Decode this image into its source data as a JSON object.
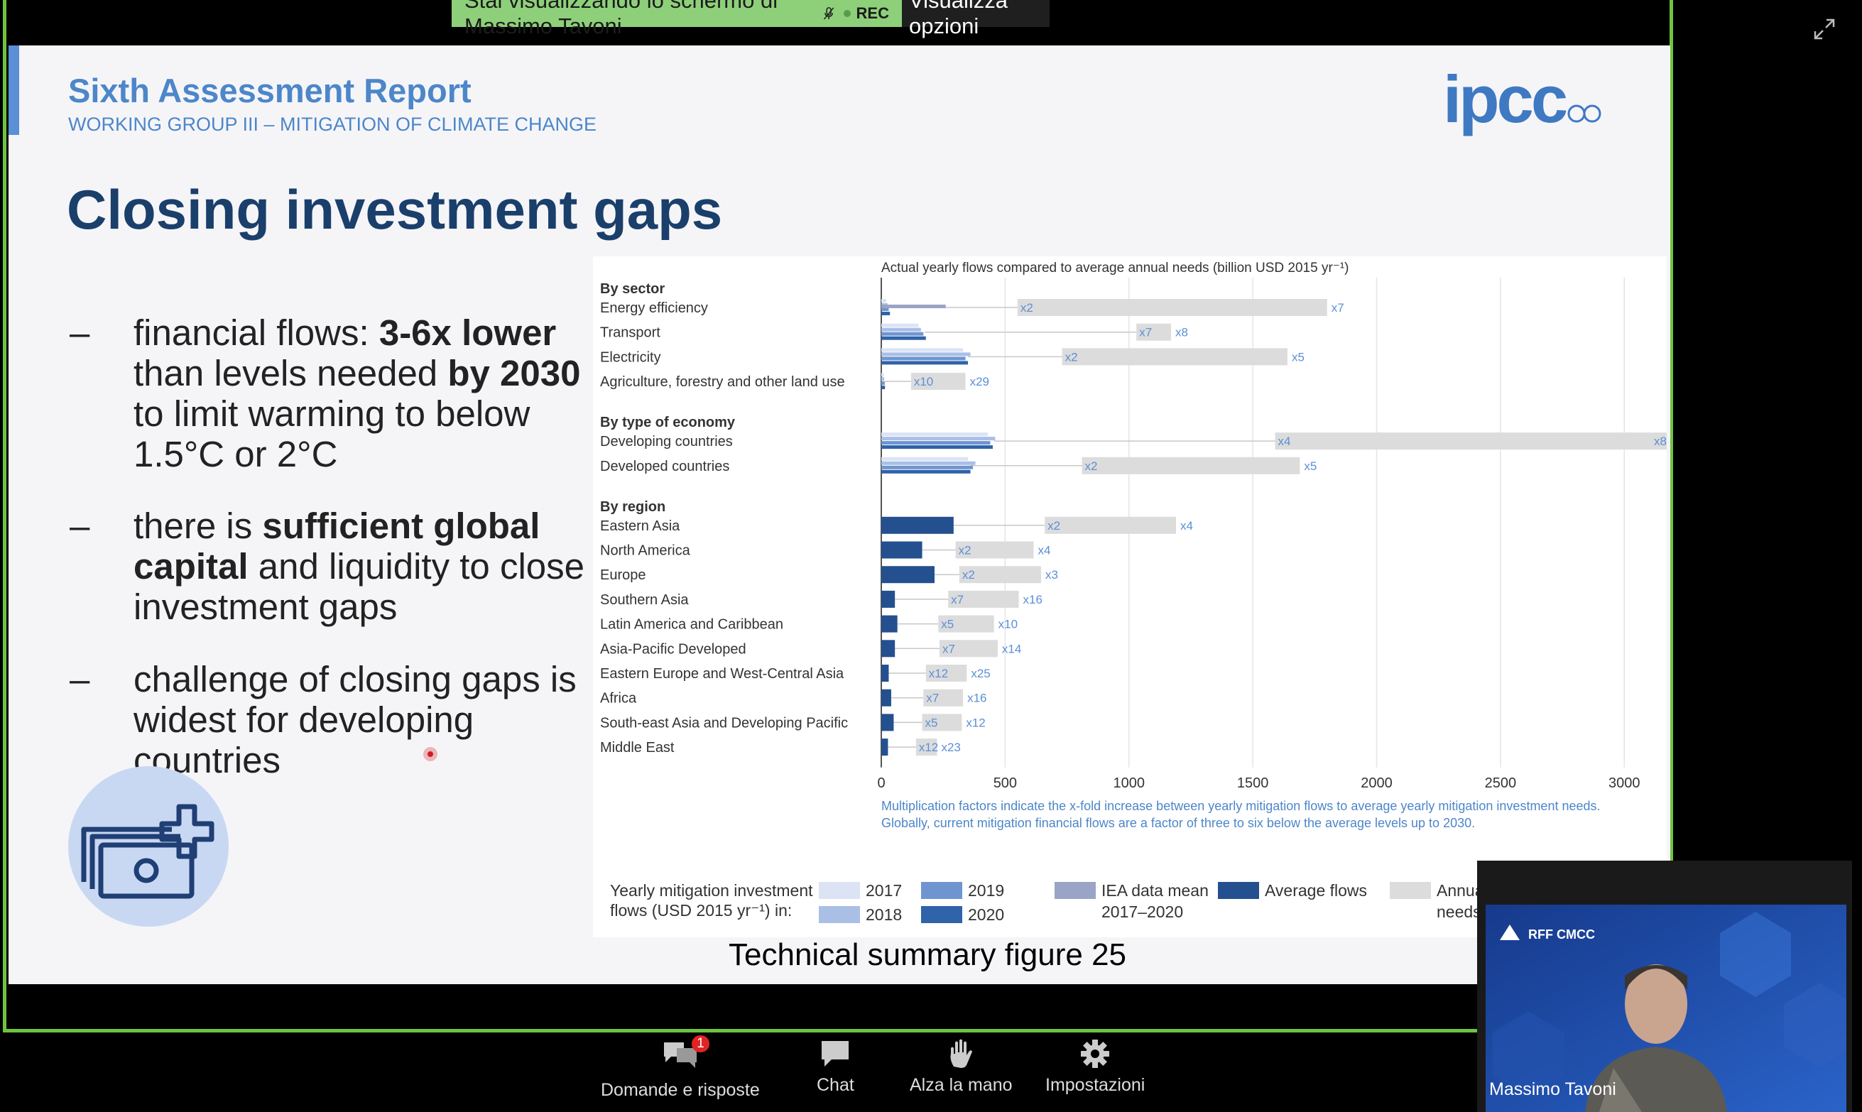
{
  "share_banner": {
    "message": "Stai visualizzando lo schermo di Massimo Tavoni",
    "rec_label": "REC",
    "options_label": "Visualizza opzioni"
  },
  "slide": {
    "report_title": "Sixth Assessment Report",
    "report_subtitle": "WORKING GROUP III – MITIGATION OF CLIMATE CHANGE",
    "logo_text": "ipcc",
    "title": "Closing investment gaps",
    "bullets": [
      {
        "dash": "–",
        "parts": [
          [
            "financial flows: ",
            false
          ],
          [
            "3-6x lower",
            true
          ],
          [
            " than levels needed ",
            false
          ],
          [
            "by 2030",
            true
          ],
          [
            " to limit warming to below 1.5°C or 2°C",
            false
          ]
        ]
      },
      {
        "dash": "–",
        "parts": [
          [
            "there is ",
            false
          ],
          [
            "sufficient global capital",
            true
          ],
          [
            " and liquidity to close investment gaps",
            false
          ]
        ]
      },
      {
        "dash": "–",
        "parts": [
          [
            "challenge of closing gaps is widest for developing countries",
            false
          ]
        ]
      }
    ],
    "figure_caption": "Technical summary figure 25"
  },
  "chart_data": {
    "type": "bar",
    "orientation": "horizontal",
    "title": "Actual yearly flows compared to average annual needs (billion USD 2015 yr⁻¹)",
    "xlim": [
      0,
      3200
    ],
    "xticks": [
      0,
      500,
      1000,
      1500,
      2000,
      2500,
      3000
    ],
    "grid": true,
    "groups": [
      {
        "label": "By sector",
        "rows": [
          {
            "name": "Energy efficiency",
            "flows": [
              20,
              25,
              30,
              35
            ],
            "iea_mean": 260,
            "average": 30,
            "needs": [
              550,
              1800
            ],
            "low_factor": "x2",
            "high_factor": "x7"
          },
          {
            "name": "Transport",
            "flows": [
              150,
              160,
              170,
              180
            ],
            "iea_mean": 0,
            "average": 175,
            "needs": [
              1030,
              1170
            ],
            "low_factor": "x7",
            "high_factor": "x8"
          },
          {
            "name": "Electricity",
            "flows": [
              330,
              360,
              340,
              350
            ],
            "iea_mean": 0,
            "average": 350,
            "needs": [
              730,
              1640
            ],
            "low_factor": "x2",
            "high_factor": "x5"
          },
          {
            "name": "Agriculture, forestry and other land use",
            "flows": [
              10,
              12,
              14,
              15
            ],
            "iea_mean": 0,
            "average": 14,
            "needs": [
              120,
              340
            ],
            "low_factor": "x10",
            "high_factor": "x29"
          }
        ]
      },
      {
        "label": "By type of economy",
        "rows": [
          {
            "name": "Developing countries",
            "flows": [
              430,
              460,
              440,
              450
            ],
            "iea_mean": 0,
            "average": 455,
            "needs": [
              1590,
              3200
            ],
            "low_factor": "x4",
            "high_factor": "x8"
          },
          {
            "name": "Developed countries",
            "flows": [
              350,
              380,
              370,
              360
            ],
            "iea_mean": 0,
            "average": 360,
            "needs": [
              810,
              1690
            ],
            "low_factor": "x2",
            "high_factor": "x5"
          }
        ]
      },
      {
        "label": "By region",
        "rows": [
          {
            "name": "Eastern Asia",
            "flows": [],
            "iea_mean": 0,
            "average": 292,
            "needs": [
              660,
              1190
            ],
            "low_factor": "x2",
            "high_factor": "x4"
          },
          {
            "name": "North America",
            "flows": [],
            "iea_mean": 0,
            "average": 165,
            "needs": [
              300,
              615
            ],
            "low_factor": "x2",
            "high_factor": "x4"
          },
          {
            "name": "Europe",
            "flows": [],
            "iea_mean": 0,
            "average": 215,
            "needs": [
              315,
              645
            ],
            "low_factor": "x2",
            "high_factor": "x3"
          },
          {
            "name": "Southern Asia",
            "flows": [],
            "iea_mean": 0,
            "average": 55,
            "needs": [
              270,
              555
            ],
            "low_factor": "x7",
            "high_factor": "x16"
          },
          {
            "name": "Latin America and Caribbean",
            "flows": [],
            "iea_mean": 0,
            "average": 65,
            "needs": [
              230,
              455
            ],
            "low_factor": "x5",
            "high_factor": "x10"
          },
          {
            "name": "Asia-Pacific Developed",
            "flows": [],
            "iea_mean": 0,
            "average": 55,
            "needs": [
              235,
              470
            ],
            "low_factor": "x7",
            "high_factor": "x14"
          },
          {
            "name": "Eastern Europe and West-Central Asia",
            "flows": [],
            "iea_mean": 0,
            "average": 30,
            "needs": [
              180,
              345
            ],
            "low_factor": "x12",
            "high_factor": "x25"
          },
          {
            "name": "Africa",
            "flows": [],
            "iea_mean": 0,
            "average": 40,
            "needs": [
              170,
              330
            ],
            "low_factor": "x7",
            "high_factor": "x16"
          },
          {
            "name": "South-east Asia and Developing Pacific",
            "flows": [],
            "iea_mean": 0,
            "average": 50,
            "needs": [
              165,
              325
            ],
            "low_factor": "x5",
            "high_factor": "x12"
          },
          {
            "name": "Middle East",
            "flows": [],
            "iea_mean": 0,
            "average": 27,
            "needs": [
              140,
              225
            ],
            "low_factor": "x12",
            "high_factor": "x23"
          }
        ]
      }
    ],
    "notes": [
      "Multiplication factors indicate the x-fold increase between yearly mitigation flows to average yearly mitigation investment needs.",
      "Globally, current mitigation financial flows are a factor of three to six below the average levels up to 2030."
    ],
    "legend": {
      "title_line1": "Yearly mitigation investment",
      "title_line2": "flows (USD 2015 yr⁻¹) in:",
      "items": [
        {
          "label": "2017",
          "color": "#dbe3f5"
        },
        {
          "label": "2018",
          "color": "#a9bfe6"
        },
        {
          "label": "2019",
          "color": "#6f95d1"
        },
        {
          "label": "2020",
          "color": "#2f63aa"
        },
        {
          "label": "IEA data mean",
          "label2": "2017–2020",
          "color": "#9aa4c6"
        },
        {
          "label": "Average flows",
          "color": "#24508f"
        },
        {
          "label": "Annual mitigation investment",
          "label2": "needs",
          "color": "#dcdcdc"
        }
      ]
    }
  },
  "colors": {
    "average": "#24508f",
    "needs": "#dcdcdc",
    "factor": "#5b8fd6",
    "frame": "#6ec33f"
  },
  "webcam": {
    "participant_name": "Massimo Tavoni",
    "logo_text": "RFF CMCC"
  },
  "toolbar": [
    {
      "key": "qa",
      "label": "Domande e risposte",
      "icon": "qa-icon",
      "badge": "1"
    },
    {
      "key": "chat",
      "label": "Chat",
      "icon": "chat-icon"
    },
    {
      "key": "hand",
      "label": "Alza la mano",
      "icon": "raise-hand-icon"
    },
    {
      "key": "settings",
      "label": "Impostazioni",
      "icon": "gear-icon"
    }
  ]
}
